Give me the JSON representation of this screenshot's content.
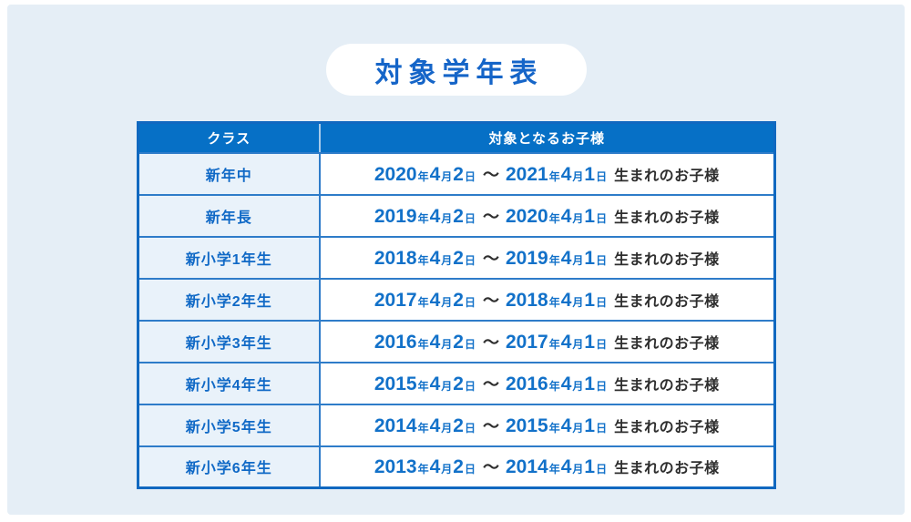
{
  "page": {
    "title": "対象学年表",
    "background_color": "#E5EEF6",
    "accent_blue": "#0670C6",
    "text_blue": "#1069C6",
    "text_dark": "#2E2E2E"
  },
  "labels": {
    "year": "年",
    "month": "月",
    "day": "日",
    "separator": "～",
    "suffix": "生まれのお子様"
  },
  "table": {
    "headers": [
      "クラス",
      "対象となるお子様"
    ],
    "rows": [
      {
        "class": "新年中",
        "start": {
          "year": "2020",
          "month": "4",
          "day": "2"
        },
        "end": {
          "year": "2021",
          "month": "4",
          "day": "1"
        }
      },
      {
        "class": "新年長",
        "start": {
          "year": "2019",
          "month": "4",
          "day": "2"
        },
        "end": {
          "year": "2020",
          "month": "4",
          "day": "1"
        }
      },
      {
        "class": "新小学1年生",
        "start": {
          "year": "2018",
          "month": "4",
          "day": "2"
        },
        "end": {
          "year": "2019",
          "month": "4",
          "day": "1"
        }
      },
      {
        "class": "新小学2年生",
        "start": {
          "year": "2017",
          "month": "4",
          "day": "2"
        },
        "end": {
          "year": "2018",
          "month": "4",
          "day": "1"
        }
      },
      {
        "class": "新小学3年生",
        "start": {
          "year": "2016",
          "month": "4",
          "day": "2"
        },
        "end": {
          "year": "2017",
          "month": "4",
          "day": "1"
        }
      },
      {
        "class": "新小学4年生",
        "start": {
          "year": "2015",
          "month": "4",
          "day": "2"
        },
        "end": {
          "year": "2016",
          "month": "4",
          "day": "1"
        }
      },
      {
        "class": "新小学5年生",
        "start": {
          "year": "2014",
          "month": "4",
          "day": "2"
        },
        "end": {
          "year": "2015",
          "month": "4",
          "day": "1"
        }
      },
      {
        "class": "新小学6年生",
        "start": {
          "year": "2013",
          "month": "4",
          "day": "2"
        },
        "end": {
          "year": "2014",
          "month": "4",
          "day": "1"
        }
      }
    ]
  }
}
